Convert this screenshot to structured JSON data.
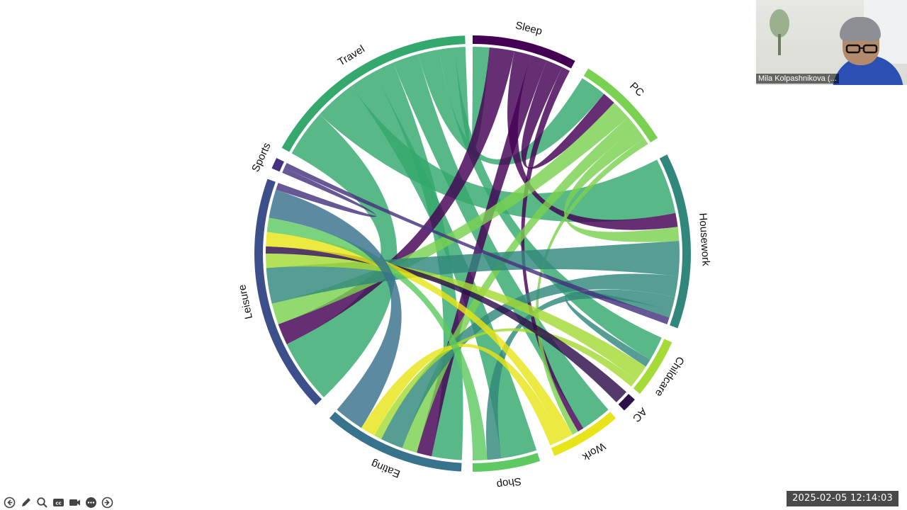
{
  "chart_data": {
    "type": "chord",
    "sectors": [
      {
        "name": "Sleep",
        "color": "#440154"
      },
      {
        "name": "PC",
        "color": "#7ad151"
      },
      {
        "name": "Housework",
        "color": "#31877b"
      },
      {
        "name": "Childcare",
        "color": "#a5db36"
      },
      {
        "name": "AC",
        "color": "#2d0f4a"
      },
      {
        "name": "Work",
        "color": "#e7e419"
      },
      {
        "name": "Shop",
        "color": "#5ec962"
      },
      {
        "name": "Eating",
        "color": "#38728c"
      },
      {
        "name": "Leisure",
        "color": "#3d4f8a"
      },
      {
        "name": "Sports",
        "color": "#46327e"
      },
      {
        "name": "Travel",
        "color": "#35a86d"
      }
    ],
    "flows": [
      {
        "from": "Travel",
        "to": "Leisure",
        "value": 9
      },
      {
        "from": "Travel",
        "to": "Housework",
        "value": 8
      },
      {
        "from": "Travel",
        "to": "Shop",
        "value": 5
      },
      {
        "from": "Travel",
        "to": "Eating",
        "value": 4
      },
      {
        "from": "Travel",
        "to": "Work",
        "value": 5
      },
      {
        "from": "Travel",
        "to": "PC",
        "value": 4
      },
      {
        "from": "Travel",
        "to": "Childcare",
        "value": 3
      },
      {
        "from": "Travel",
        "to": "Sleep",
        "value": 2
      },
      {
        "from": "Sleep",
        "to": "Leisure",
        "value": 3
      },
      {
        "from": "Sleep",
        "to": "Housework",
        "value": 2
      },
      {
        "from": "Sleep",
        "to": "Eating",
        "value": 2
      },
      {
        "from": "Sleep",
        "to": "PC",
        "value": 2
      },
      {
        "from": "Sleep",
        "to": "Work",
        "value": 1
      },
      {
        "from": "PC",
        "to": "Leisure",
        "value": 3
      },
      {
        "from": "PC",
        "to": "Eating",
        "value": 2
      },
      {
        "from": "PC",
        "to": "Housework",
        "value": 2
      },
      {
        "from": "PC",
        "to": "Work",
        "value": 1
      },
      {
        "from": "Housework",
        "to": "Leisure",
        "value": 5
      },
      {
        "from": "Housework",
        "to": "Eating",
        "value": 3
      },
      {
        "from": "Housework",
        "to": "Shop",
        "value": 2
      },
      {
        "from": "Housework",
        "to": "Childcare",
        "value": 1
      },
      {
        "from": "Childcare",
        "to": "Leisure",
        "value": 2
      },
      {
        "from": "Childcare",
        "to": "Eating",
        "value": 1
      },
      {
        "from": "AC",
        "to": "Leisure",
        "value": 1
      },
      {
        "from": "Work",
        "to": "Leisure",
        "value": 2
      },
      {
        "from": "Work",
        "to": "Eating",
        "value": 2
      },
      {
        "from": "Shop",
        "to": "Leisure",
        "value": 2
      },
      {
        "from": "Eating",
        "to": "Leisure",
        "value": 4
      },
      {
        "from": "Sports",
        "to": "Leisure",
        "value": 1
      },
      {
        "from": "Sports",
        "to": "Housework",
        "value": 1
      }
    ],
    "title": ""
  },
  "video": {
    "participant_name": "Mila Kolpashnikova (..."
  },
  "toolbar": {
    "buttons": [
      {
        "name": "back-icon"
      },
      {
        "name": "pen-icon"
      },
      {
        "name": "zoom-icon"
      },
      {
        "name": "captions-icon"
      },
      {
        "name": "video-icon"
      },
      {
        "name": "more-icon"
      },
      {
        "name": "forward-icon"
      }
    ]
  },
  "timestamp": "2025-02-05  12:14:03"
}
